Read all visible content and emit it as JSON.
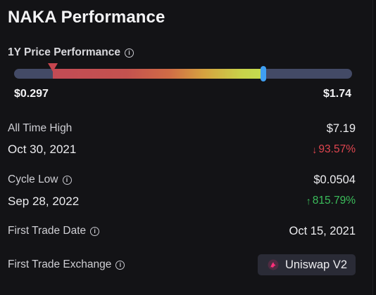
{
  "title": "NAKA Performance",
  "price_performance": {
    "label": "1Y Price Performance",
    "low": "$0.297",
    "high": "$1.74",
    "current_fraction": 0.737,
    "low_marker_fraction": 0.115
  },
  "all_time_high": {
    "label": "All Time High",
    "value": "$7.19",
    "date": "Oct 30, 2021",
    "change": "93.57%",
    "direction": "down"
  },
  "cycle_low": {
    "label": "Cycle Low",
    "value": "$0.0504",
    "date": "Sep 28, 2022",
    "change": "815.79%",
    "direction": "up"
  },
  "first_trade_date": {
    "label": "First Trade Date",
    "value": "Oct 15, 2021"
  },
  "first_trade_exchange": {
    "label": "First Trade Exchange",
    "value": "Uniswap V2",
    "icon": "uniswap-icon"
  },
  "colors": {
    "background": "#131316",
    "down": "#e0454f",
    "up": "#3bbd5b",
    "current_marker": "#3f9ff2",
    "badge": "#2a2b36"
  }
}
